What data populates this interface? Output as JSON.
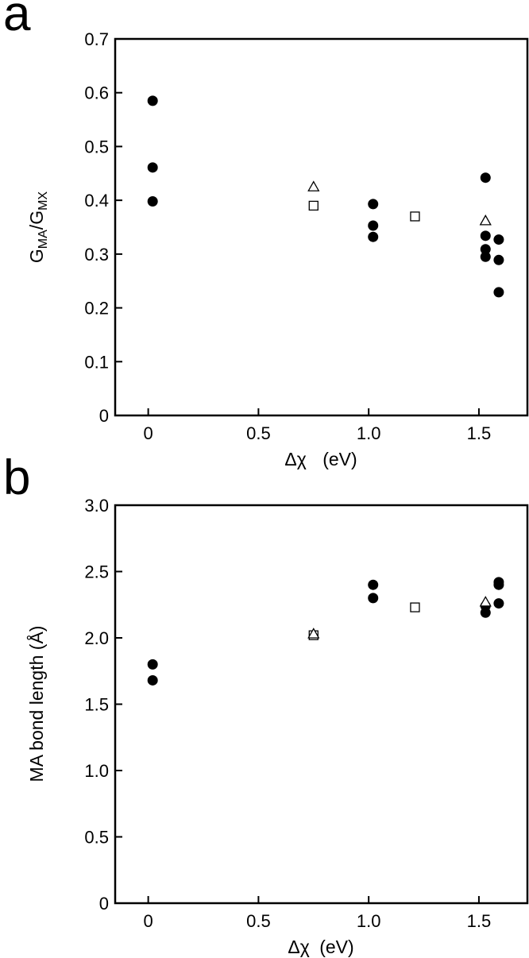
{
  "chart_data": [
    {
      "panel_label": "a",
      "type": "scatter",
      "xlabel_pieces": [
        "Δχ",
        "(eV)"
      ],
      "ylabel_pieces": [
        {
          "text": "G",
          "sub": false
        },
        {
          "text": "MA",
          "sub": true
        },
        {
          "text": "/G",
          "sub": false
        },
        {
          "text": "MX",
          "sub": true
        }
      ],
      "xlim": [
        -0.15,
        1.72
      ],
      "ylim": [
        0,
        0.7
      ],
      "x_ticks": [
        {
          "value": 0,
          "label": "0"
        },
        {
          "value": 0.5,
          "label": "0.5"
        },
        {
          "value": 1.0,
          "label": "1.0"
        },
        {
          "value": 1.5,
          "label": "1.5"
        }
      ],
      "y_ticks": [
        {
          "value": 0,
          "label": "0"
        },
        {
          "value": 0.1,
          "label": "0.1"
        },
        {
          "value": 0.2,
          "label": "0.2"
        },
        {
          "value": 0.3,
          "label": "0.3"
        },
        {
          "value": 0.4,
          "label": "0.4"
        },
        {
          "value": 0.5,
          "label": "0.5"
        },
        {
          "value": 0.6,
          "label": "0.6"
        },
        {
          "value": 0.7,
          "label": "0.7"
        }
      ],
      "grid": false,
      "series": [
        {
          "marker": "filled-circle",
          "points": [
            [
              0.02,
              0.585
            ],
            [
              0.02,
              0.461
            ],
            [
              0.02,
              0.398
            ],
            [
              1.02,
              0.393
            ],
            [
              1.02,
              0.353
            ],
            [
              1.02,
              0.332
            ],
            [
              1.53,
              0.442
            ],
            [
              1.53,
              0.334
            ],
            [
              1.53,
              0.309
            ],
            [
              1.53,
              0.295
            ],
            [
              1.59,
              0.327
            ],
            [
              1.59,
              0.289
            ],
            [
              1.59,
              0.229
            ]
          ]
        },
        {
          "marker": "open-square",
          "points": [
            [
              0.75,
              0.39
            ],
            [
              1.21,
              0.37
            ]
          ]
        },
        {
          "marker": "open-triangle",
          "points": [
            [
              0.75,
              0.425
            ],
            [
              1.53,
              0.362
            ]
          ]
        }
      ]
    },
    {
      "panel_label": "b",
      "type": "scatter",
      "xlabel_pieces": [
        "Δχ",
        "(eV)"
      ],
      "ylabel_pieces": [
        {
          "text": "MA bond length (Å)",
          "sub": false
        }
      ],
      "xlim": [
        -0.15,
        1.72
      ],
      "ylim": [
        0,
        3.0
      ],
      "x_ticks": [
        {
          "value": 0,
          "label": "0"
        },
        {
          "value": 0.5,
          "label": "0.5"
        },
        {
          "value": 1.0,
          "label": "1.0"
        },
        {
          "value": 1.5,
          "label": "1.5"
        }
      ],
      "y_ticks": [
        {
          "value": 0,
          "label": "0"
        },
        {
          "value": 0.5,
          "label": "0.5"
        },
        {
          "value": 1.0,
          "label": "1.0"
        },
        {
          "value": 1.5,
          "label": "1.5"
        },
        {
          "value": 2.0,
          "label": "2.0"
        },
        {
          "value": 2.5,
          "label": "2.5"
        },
        {
          "value": 3.0,
          "label": "3.0"
        }
      ],
      "grid": false,
      "series": [
        {
          "marker": "filled-circle",
          "points": [
            [
              0.02,
              1.8
            ],
            [
              0.02,
              1.68
            ],
            [
              1.02,
              2.4
            ],
            [
              1.02,
              2.3
            ],
            [
              1.53,
              2.24
            ],
            [
              1.53,
              2.19
            ],
            [
              1.59,
              2.42
            ],
            [
              1.59,
              2.4
            ],
            [
              1.59,
              2.26
            ]
          ]
        },
        {
          "marker": "open-square",
          "points": [
            [
              0.75,
              2.02
            ],
            [
              1.21,
              2.23
            ]
          ]
        },
        {
          "marker": "open-triangle",
          "points": [
            [
              0.75,
              2.03
            ],
            [
              1.53,
              2.27
            ]
          ]
        }
      ]
    }
  ]
}
